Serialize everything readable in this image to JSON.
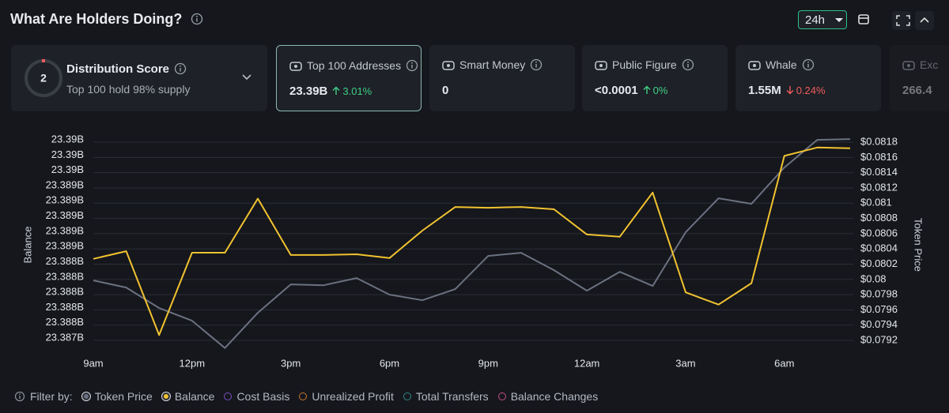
{
  "header": {
    "title": "What Are Holders Doing?",
    "timeframe": "24h"
  },
  "score_card": {
    "score": 2,
    "title": "Distribution Score",
    "subtitle": "Top 100 hold 98% supply"
  },
  "cards": [
    {
      "label": "Top 100 Addresses",
      "value": "23.39B",
      "change": "3.01%",
      "direction": "up",
      "selected": true
    },
    {
      "label": "Smart Money",
      "value": "0"
    },
    {
      "label": "Public Figure",
      "value": "<0.0001",
      "change": "0%",
      "direction": "up"
    },
    {
      "label": "Whale",
      "value": "1.55M",
      "change": "0.24%",
      "direction": "down"
    },
    {
      "label": "Exc",
      "value": "266.4"
    }
  ],
  "chart_data": {
    "type": "line",
    "ylabel": "Balance",
    "y2label": "Token Price",
    "grid": true,
    "categories": [
      "9am",
      null,
      null,
      "12pm",
      null,
      null,
      "3pm",
      null,
      null,
      "6pm",
      null,
      null,
      "9pm",
      null,
      null,
      "12am",
      null,
      null,
      "3am",
      null,
      null,
      "6am",
      null,
      null
    ],
    "ylim": [
      23.3872,
      23.39
    ],
    "yticks": [
      {
        "value": 23.3873,
        "label": "23.387B"
      },
      {
        "value": 23.3875,
        "label": "23.388B"
      },
      {
        "value": 23.3877,
        "label": "23.388B"
      },
      {
        "value": 23.3879,
        "label": "23.388B"
      },
      {
        "value": 23.3881,
        "label": "23.388B"
      },
      {
        "value": 23.3883,
        "label": "23.388B"
      },
      {
        "value": 23.3885,
        "label": "23.389B"
      },
      {
        "value": 23.3887,
        "label": "23.389B"
      },
      {
        "value": 23.3889,
        "label": "23.389B"
      },
      {
        "value": 23.3891,
        "label": "23.389B"
      },
      {
        "value": 23.3893,
        "label": "23.389B"
      },
      {
        "value": 23.3895,
        "label": "23.39B"
      },
      {
        "value": 23.3897,
        "label": "23.39B"
      },
      {
        "value": 23.3899,
        "label": "23.39B"
      }
    ],
    "y2lim": [
      0.0791,
      0.0819
    ],
    "y2ticks": [
      {
        "value": 0.0792,
        "label": "$0.0792"
      },
      {
        "value": 0.0794,
        "label": "$0.0794"
      },
      {
        "value": 0.0796,
        "label": "$0.0796"
      },
      {
        "value": 0.0798,
        "label": "$0.0798"
      },
      {
        "value": 0.08,
        "label": "$0.08"
      },
      {
        "value": 0.0802,
        "label": "$0.0802"
      },
      {
        "value": 0.0804,
        "label": "$0.0804"
      },
      {
        "value": 0.0806,
        "label": "$0.0806"
      },
      {
        "value": 0.0808,
        "label": "$0.0808"
      },
      {
        "value": 0.081,
        "label": "$0.081"
      },
      {
        "value": 0.0812,
        "label": "$0.0812"
      },
      {
        "value": 0.0814,
        "label": "$0.0814"
      },
      {
        "value": 0.0816,
        "label": "$0.0816"
      },
      {
        "value": 0.0818,
        "label": "$0.0818"
      }
    ],
    "series": [
      {
        "name": "Token Price",
        "color": "#6b7180",
        "axis": "y2",
        "values": [
          0.079987,
          0.079893,
          0.079624,
          0.079458,
          0.0791,
          0.079562,
          0.079935,
          0.079924,
          0.080018,
          0.0798,
          0.079727,
          0.079873,
          0.080308,
          0.080349,
          0.080121,
          0.079852,
          0.0801,
          0.079914,
          0.080619,
          0.081064,
          0.080992,
          0.081468,
          0.081831,
          0.081841
        ]
      },
      {
        "name": "Balance",
        "color": "#f2c230",
        "values": [
          23.38837,
          23.38847,
          23.38737,
          23.38845,
          23.38845,
          23.38916,
          23.38842,
          23.38842,
          23.38843,
          23.38838,
          23.38874,
          23.38905,
          23.38904,
          23.38905,
          23.38902,
          23.38869,
          23.38866,
          23.38924,
          23.38793,
          23.38777,
          23.38805,
          23.38972,
          23.38983,
          23.38982
        ]
      }
    ]
  },
  "filters": {
    "label": "Filter by:",
    "items": [
      {
        "name": "Token Price",
        "color": "#6b7180",
        "active": true
      },
      {
        "name": "Balance",
        "color": "#f2c230",
        "active": true
      },
      {
        "name": "Cost Basis",
        "color": "#7b4fc9",
        "active": false
      },
      {
        "name": "Unrealized Profit",
        "color": "#c9752f",
        "active": false
      },
      {
        "name": "Total Transfers",
        "color": "#2f8a86",
        "active": false
      },
      {
        "name": "Balance Changes",
        "color": "#c94f82",
        "active": false
      }
    ]
  }
}
